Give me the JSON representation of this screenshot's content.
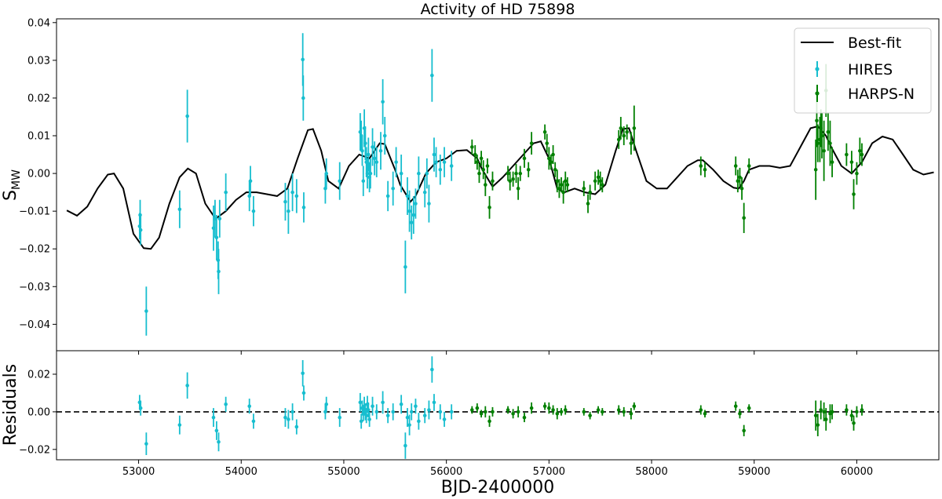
{
  "colors": {
    "hires": "#17becf",
    "harps": "#008000",
    "fit": "#000000",
    "zero_line": "#000000"
  },
  "chart_data": [
    {
      "type": "scatter",
      "title": "Activity of HD 75898",
      "xlabel": "",
      "ylabel": "S",
      "ylabel_sub": "MW",
      "xlim": [
        52200,
        60800
      ],
      "ylim": [
        -0.047,
        0.041
      ],
      "xticks": [
        53000,
        54000,
        55000,
        56000,
        57000,
        58000,
        59000,
        60000
      ],
      "yticks": [
        -0.04,
        -0.03,
        -0.02,
        -0.01,
        0.0,
        0.01,
        0.02,
        0.03,
        0.04
      ],
      "ytick_labels": [
        "−0.04",
        "−0.03",
        "−0.02",
        "−0.01",
        "0.00",
        "0.01",
        "0.02",
        "0.03",
        "0.04"
      ],
      "legend": {
        "position": "top-right",
        "entries": [
          "Best-fit",
          "HIRES",
          "HARPS-N"
        ]
      },
      "series": [
        {
          "name": "Best-fit",
          "kind": "line",
          "x": [
            52300,
            52400,
            52500,
            52600,
            52700,
            52760,
            52850,
            52950,
            53050,
            53120,
            53200,
            53300,
            53400,
            53480,
            53560,
            53650,
            53750,
            53850,
            53950,
            54050,
            54150,
            54250,
            54350,
            54450,
            54550,
            54650,
            54700,
            54780,
            54850,
            54950,
            55050,
            55150,
            55250,
            55350,
            55400,
            55500,
            55550,
            55650,
            55700,
            55800,
            55900,
            56000,
            56100,
            56200,
            56300,
            56350,
            56450,
            56550,
            56650,
            56750,
            56850,
            56920,
            57000,
            57080,
            57150,
            57250,
            57350,
            57450,
            57550,
            57650,
            57720,
            57780,
            57850,
            57950,
            58050,
            58150,
            58250,
            58350,
            58450,
            58500,
            58600,
            58700,
            58800,
            58850,
            58900,
            58950,
            59050,
            59150,
            59250,
            59350,
            59450,
            59550,
            59620,
            59700,
            59750,
            59850,
            59950,
            60050,
            60150,
            60250,
            60350,
            60450,
            60550,
            60650,
            60750
          ],
          "y": [
            -0.0098,
            -0.0112,
            -0.0088,
            -0.004,
            -0.0003,
            0.0,
            -0.004,
            -0.016,
            -0.0198,
            -0.02,
            -0.017,
            -0.008,
            -0.001,
            0.0013,
            0.0,
            -0.008,
            -0.012,
            -0.01,
            -0.007,
            -0.005,
            -0.005,
            -0.0055,
            -0.006,
            -0.004,
            0.004,
            0.0115,
            0.0118,
            0.006,
            -0.002,
            -0.004,
            0.002,
            0.005,
            0.004,
            0.008,
            0.0078,
            0.001,
            -0.003,
            -0.0075,
            -0.006,
            0.0,
            0.003,
            0.004,
            0.006,
            0.0062,
            0.004,
            0.001,
            -0.0035,
            -0.001,
            0.002,
            0.005,
            0.008,
            0.0085,
            0.004,
            -0.004,
            -0.005,
            -0.004,
            -0.005,
            -0.0055,
            -0.003,
            0.006,
            0.0118,
            0.012,
            0.006,
            -0.002,
            -0.004,
            -0.004,
            -0.001,
            0.002,
            0.0035,
            0.0035,
            0.001,
            -0.002,
            -0.0038,
            -0.004,
            -0.002,
            0.001,
            0.002,
            0.002,
            0.0015,
            0.002,
            0.007,
            0.012,
            0.0125,
            0.01,
            0.007,
            0.002,
            0.0,
            0.003,
            0.008,
            0.0098,
            0.009,
            0.005,
            0.001,
            -0.0003,
            0.0003
          ]
        },
        {
          "name": "HIRES",
          "kind": "errorbar",
          "x": [
            53010,
            53015,
            53020,
            53075,
            53400,
            53475,
            53730,
            53745,
            53760,
            53775,
            53780,
            53790,
            53850,
            54080,
            54090,
            54120,
            54430,
            54460,
            54500,
            54540,
            54600,
            54605,
            54610,
            54820,
            54830,
            54960,
            55160,
            55170,
            55180,
            55190,
            55200,
            55210,
            55220,
            55230,
            55240,
            55250,
            55260,
            55280,
            55300,
            55320,
            55360,
            55380,
            55400,
            55430,
            55480,
            55510,
            55560,
            55600,
            55620,
            55640,
            55660,
            55680,
            55700,
            55730,
            55790,
            55810,
            55830,
            55860,
            55880,
            55900,
            55940,
            55980,
            56050
          ],
          "y": [
            -0.014,
            -0.011,
            -0.015,
            -0.0365,
            -0.0095,
            0.0152,
            -0.0145,
            -0.012,
            -0.017,
            -0.023,
            -0.026,
            -0.012,
            -0.005,
            -0.006,
            -0.002,
            -0.01,
            -0.0075,
            -0.01,
            -0.005,
            -0.006,
            0.0302,
            0.02,
            -0.009,
            -0.004,
            0.0,
            -0.002,
            0.011,
            0.01,
            0.006,
            -0.002,
            0.012,
            0.008,
            0.003,
            0.0,
            0.005,
            -0.001,
            0.0,
            0.007,
            0.004,
            0.003,
            0.006,
            0.019,
            0.01,
            -0.006,
            -0.004,
            0.003,
            0.0,
            -0.0248,
            -0.006,
            -0.01,
            -0.013,
            -0.011,
            -0.008,
            0.0,
            -0.005,
            0.0,
            -0.008,
            0.026,
            0.005,
            0.003,
            0.001,
            0.003,
            0.002
          ],
          "err": [
            0.0035,
            0.004,
            0.004,
            0.0065,
            0.005,
            0.007,
            0.006,
            0.005,
            0.006,
            0.005,
            0.006,
            0.005,
            0.005,
            0.004,
            0.004,
            0.004,
            0.005,
            0.006,
            0.005,
            0.0045,
            0.007,
            0.006,
            0.004,
            0.004,
            0.004,
            0.005,
            0.005,
            0.004,
            0.004,
            0.004,
            0.005,
            0.0045,
            0.004,
            0.004,
            0.0045,
            0.004,
            0.004,
            0.005,
            0.0045,
            0.004,
            0.005,
            0.006,
            0.005,
            0.004,
            0.0045,
            0.004,
            0.005,
            0.007,
            0.005,
            0.0055,
            0.0045,
            0.005,
            0.004,
            0.0045,
            0.004,
            0.004,
            0.005,
            0.007,
            0.0045,
            0.004,
            0.004,
            0.004,
            0.004
          ]
        },
        {
          "name": "HARPS-N",
          "kind": "errorbar",
          "x": [
            56250,
            56280,
            56300,
            56320,
            56340,
            56360,
            56380,
            56400,
            56420,
            56450,
            56600,
            56620,
            56650,
            56680,
            56700,
            56720,
            56760,
            56800,
            56830,
            56960,
            56980,
            57000,
            57020,
            57040,
            57060,
            57080,
            57100,
            57120,
            57140,
            57160,
            57180,
            57340,
            57380,
            57400,
            57450,
            57480,
            57500,
            57520,
            57680,
            57700,
            57730,
            57760,
            57800,
            57830,
            58480,
            58520,
            58820,
            58840,
            58860,
            58880,
            58900,
            58950,
            59600,
            59610,
            59620,
            59640,
            59650,
            59660,
            59680,
            59700,
            59720,
            59740,
            59760,
            59900,
            59950,
            59970,
            60000,
            60030,
            60050
          ],
          "y": [
            0.007,
            0.005,
            0.003,
            0.0,
            0.004,
            0.001,
            -0.003,
            0.002,
            -0.009,
            -0.002,
            0.0,
            -0.002,
            -0.0015,
            0.0,
            -0.004,
            0.0,
            0.004,
            0.001,
            0.008,
            0.011,
            0.008,
            0.004,
            0.003,
            0.005,
            0.001,
            -0.002,
            -0.004,
            -0.003,
            -0.005,
            -0.002,
            -0.003,
            -0.004,
            -0.008,
            -0.005,
            -0.002,
            -0.001,
            -0.002,
            -0.003,
            0.009,
            0.012,
            0.01,
            0.011,
            0.008,
            0.012,
            0.002,
            0.001,
            0.002,
            -0.002,
            -0.001,
            -0.004,
            -0.0118,
            0.002,
            0.001,
            0.014,
            0.008,
            0.009,
            0.012,
            0.01,
            0.006,
            0.022,
            0.011,
            0.008,
            0.003,
            0.005,
            0.003,
            -0.0055,
            0.0,
            0.006,
            0.005
          ],
          "err": [
            0.002,
            0.0025,
            0.002,
            0.0025,
            0.002,
            0.0025,
            0.003,
            0.002,
            0.003,
            0.0025,
            0.002,
            0.0025,
            0.002,
            0.0025,
            0.003,
            0.002,
            0.0025,
            0.002,
            0.003,
            0.002,
            0.0025,
            0.003,
            0.002,
            0.0025,
            0.002,
            0.003,
            0.0025,
            0.002,
            0.003,
            0.0025,
            0.002,
            0.002,
            0.0025,
            0.002,
            0.0025,
            0.002,
            0.0025,
            0.002,
            0.0025,
            0.003,
            0.0025,
            0.002,
            0.003,
            0.006,
            0.0025,
            0.002,
            0.0025,
            0.003,
            0.0025,
            0.003,
            0.004,
            0.002,
            0.008,
            0.007,
            0.005,
            0.006,
            0.005,
            0.006,
            0.008,
            0.007,
            0.005,
            0.006,
            0.004,
            0.003,
            0.003,
            0.004,
            0.003,
            0.0035,
            0.003
          ]
        }
      ]
    },
    {
      "type": "scatter",
      "title": "",
      "xlabel": "BJD-2400000",
      "ylabel": "Residuals",
      "xlim": [
        52200,
        60800
      ],
      "ylim": [
        -0.0255,
        0.0325
      ],
      "xticks": [
        53000,
        54000,
        55000,
        56000,
        57000,
        58000,
        59000,
        60000
      ],
      "yticks": [
        -0.02,
        0.0,
        0.02
      ],
      "ytick_labels": [
        "−0.02",
        "0.00",
        "0.02"
      ],
      "reference_line": {
        "y": 0,
        "style": "dashed"
      },
      "series": [
        {
          "name": "HIRES",
          "kind": "errorbar",
          "x": [
            53010,
            53020,
            53075,
            53400,
            53475,
            53730,
            53760,
            53780,
            53850,
            54080,
            54120,
            54430,
            54460,
            54500,
            54540,
            54600,
            54610,
            54820,
            54830,
            54960,
            55160,
            55170,
            55180,
            55190,
            55200,
            55210,
            55220,
            55230,
            55240,
            55250,
            55280,
            55320,
            55380,
            55430,
            55480,
            55560,
            55600,
            55620,
            55640,
            55660,
            55700,
            55730,
            55790,
            55830,
            55860,
            55880,
            55940,
            55980,
            56050
          ],
          "y": [
            0.005,
            0.002,
            -0.017,
            -0.007,
            0.014,
            -0.003,
            -0.01,
            -0.016,
            0.004,
            0.003,
            -0.005,
            -0.003,
            -0.004,
            0.0,
            -0.008,
            0.0205,
            0.01,
            0.0,
            0.004,
            -0.003,
            0.005,
            -0.005,
            0.002,
            -0.001,
            0.003,
            0.0,
            -0.002,
            0.004,
            0.001,
            -0.004,
            0.003,
            0.0,
            0.005,
            -0.002,
            0.0,
            0.004,
            -0.018,
            -0.003,
            -0.007,
            0.0,
            0.003,
            -0.005,
            -0.002,
            0.001,
            0.0225,
            0.005,
            0.0,
            -0.004,
            0.0
          ],
          "err": [
            0.004,
            0.004,
            0.006,
            0.005,
            0.007,
            0.005,
            0.005,
            0.005,
            0.004,
            0.004,
            0.004,
            0.005,
            0.005,
            0.0045,
            0.004,
            0.007,
            0.004,
            0.004,
            0.004,
            0.005,
            0.005,
            0.004,
            0.004,
            0.004,
            0.005,
            0.0045,
            0.004,
            0.0045,
            0.004,
            0.004,
            0.005,
            0.004,
            0.006,
            0.004,
            0.0045,
            0.005,
            0.007,
            0.005,
            0.0055,
            0.0045,
            0.004,
            0.0045,
            0.004,
            0.005,
            0.007,
            0.0045,
            0.004,
            0.004,
            0.004
          ]
        },
        {
          "name": "HARPS-N",
          "kind": "errorbar",
          "x": [
            56250,
            56300,
            56340,
            56380,
            56420,
            56450,
            56600,
            56650,
            56700,
            56760,
            56830,
            56960,
            57000,
            57040,
            57080,
            57120,
            57160,
            57340,
            57400,
            57480,
            57520,
            57680,
            57730,
            57800,
            57830,
            58480,
            58520,
            58820,
            58860,
            58900,
            58950,
            59600,
            59620,
            59650,
            59680,
            59700,
            59740,
            59760,
            59900,
            59950,
            59970,
            60000,
            60050
          ],
          "y": [
            0.001,
            0.002,
            -0.001,
            0.0,
            -0.005,
            0.0,
            0.001,
            -0.001,
            0.0,
            -0.003,
            0.002,
            0.003,
            0.002,
            0.001,
            -0.001,
            0.0,
            0.001,
            0.0,
            -0.002,
            0.001,
            0.0,
            0.001,
            0.0,
            -0.001,
            0.003,
            0.001,
            -0.001,
            0.003,
            -0.001,
            -0.01,
            0.002,
            -0.002,
            -0.007,
            0.001,
            0.0,
            -0.004,
            -0.001,
            0.0,
            0.001,
            -0.002,
            -0.006,
            0.0,
            0.001
          ],
          "err": [
            0.002,
            0.0025,
            0.002,
            0.003,
            0.003,
            0.0025,
            0.002,
            0.0025,
            0.003,
            0.0025,
            0.003,
            0.002,
            0.003,
            0.0025,
            0.003,
            0.002,
            0.0025,
            0.002,
            0.002,
            0.002,
            0.002,
            0.0025,
            0.0025,
            0.003,
            0.002,
            0.0025,
            0.002,
            0.0025,
            0.0025,
            0.003,
            0.002,
            0.008,
            0.006,
            0.005,
            0.005,
            0.006,
            0.005,
            0.004,
            0.003,
            0.003,
            0.004,
            0.003,
            0.003
          ]
        }
      ]
    }
  ]
}
